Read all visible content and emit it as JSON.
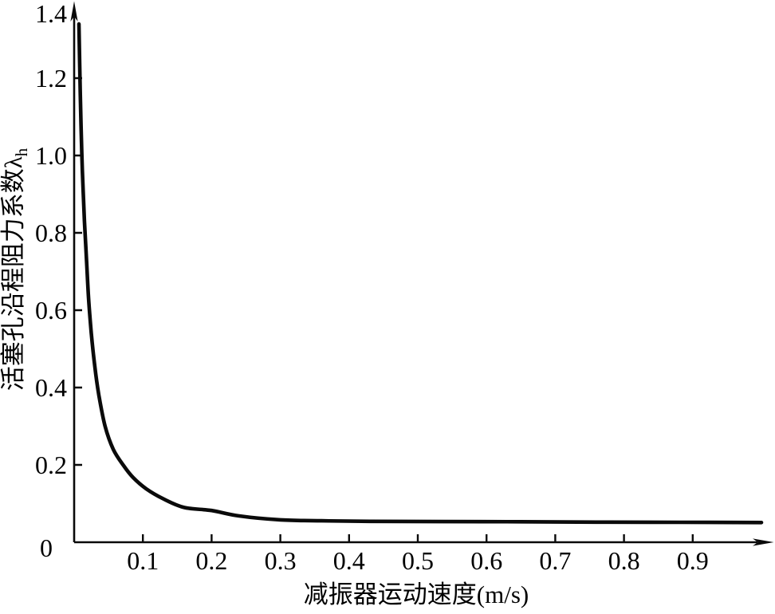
{
  "chart_data": {
    "type": "line",
    "title": "",
    "xlabel": "减振器运动速度(m/s)",
    "ylabel": "活塞孔沿程阻力系数λ",
    "ylabel_sub": "h",
    "xlim": [
      0,
      1.02
    ],
    "ylim": [
      0,
      1.4
    ],
    "grid": false,
    "legend": false,
    "background_color": "#ffffff",
    "line_color": "#0a0a0a",
    "axis_color": "#0a0a0a",
    "origin_label": "0",
    "y_axis_top_label": "1.4",
    "x_ticks": {
      "values": [
        0.1,
        0.2,
        0.3,
        0.4,
        0.5,
        0.6,
        0.7,
        0.8,
        0.9
      ],
      "labels": [
        "0.1",
        "0.2",
        "0.3",
        "0.4",
        "0.5",
        "0.6",
        "0.7",
        "0.8",
        "0.9"
      ]
    },
    "y_ticks": {
      "values": [
        0.2,
        0.4,
        0.6,
        0.8,
        1.0,
        1.2
      ],
      "labels": [
        "0.2",
        "0.4",
        "0.6",
        "0.8",
        "1.0",
        "1.2"
      ]
    },
    "series": [
      {
        "x": [
          0.007,
          0.008,
          0.01,
          0.012,
          0.015,
          0.018,
          0.021,
          0.025,
          0.03,
          0.036,
          0.045,
          0.057,
          0.072,
          0.086,
          0.105,
          0.13,
          0.16,
          0.2,
          0.24,
          0.3,
          0.36,
          0.43,
          0.53,
          0.65,
          0.76,
          0.88,
          1.0
        ],
        "y": [
          1.34,
          1.24,
          1.08,
          0.96,
          0.83,
          0.73,
          0.63,
          0.54,
          0.455,
          0.38,
          0.3,
          0.24,
          0.198,
          0.167,
          0.138,
          0.112,
          0.09,
          0.082,
          0.068,
          0.058,
          0.0555,
          0.054,
          0.0535,
          0.053,
          0.052,
          0.0515,
          0.051
        ]
      }
    ]
  }
}
